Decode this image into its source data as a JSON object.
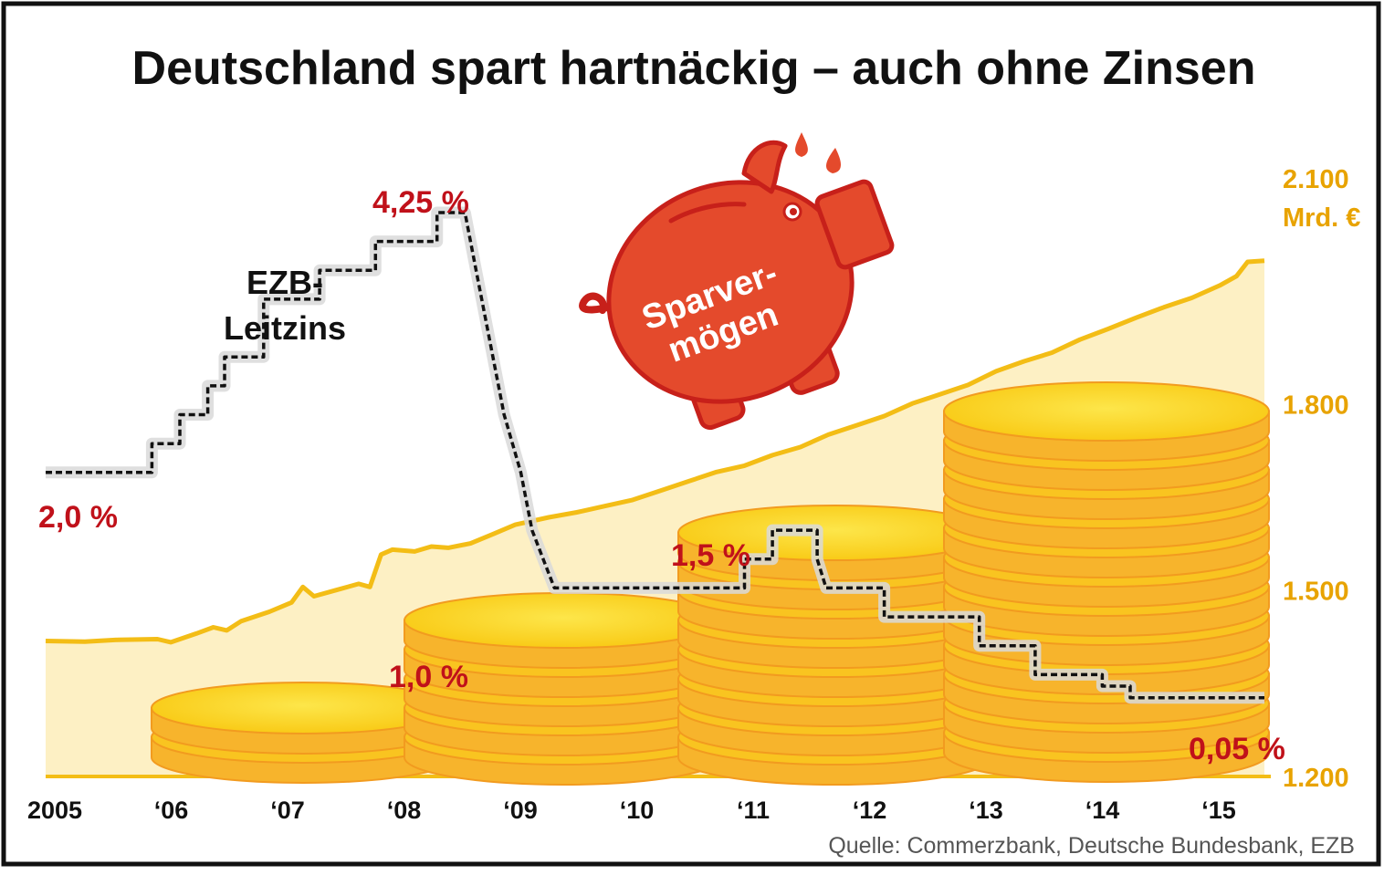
{
  "title": "Deutschland spart hartnäckig – auch ohne Zinsen",
  "source": "Quelle: Commerzbank, Deutsche Bundesbank, EZB",
  "colors": {
    "frame": "#111111",
    "area_fill": "#fdf0c4",
    "savings_line": "#f3bd16",
    "rate_line": "#111111",
    "rate_labels": "#c0111a",
    "axis_right_labels": "#e8a300",
    "piggy": "#e44a2c",
    "piggy_outline": "#c7201a",
    "coin_top": "#fbd616",
    "coin_side": "#f7b42c",
    "coin_edge": "#f29b1f"
  },
  "labels": {
    "ezb_line1": "EZB-",
    "ezb_line2": "Leitzins",
    "piggy_line1": "Sparver-",
    "piggy_line2": "mögen",
    "unit": "Mrd. €"
  },
  "chart_data": {
    "type": "line",
    "x_ticks": [
      "2005",
      "‘06",
      "‘07",
      "‘08",
      "‘09",
      "‘10",
      "‘11",
      "‘12",
      "‘13",
      "‘14",
      "‘15"
    ],
    "x_range": [
      2005.0,
      2015.9
    ],
    "y_right_ticks": [
      "1.200",
      "1.500",
      "1.800",
      "2.100"
    ],
    "y_right_range": [
      1200,
      2100
    ],
    "y_left_range": [
      0,
      4.25
    ],
    "series": [
      {
        "name": "Sparvermögen",
        "axis": "right",
        "unit": "Mrd. €",
        "points": [
          [
            2005.0,
            1418
          ],
          [
            2005.35,
            1417
          ],
          [
            2005.65,
            1420
          ],
          [
            2006.0,
            1421
          ],
          [
            2006.12,
            1416
          ],
          [
            2006.35,
            1430
          ],
          [
            2006.5,
            1440
          ],
          [
            2006.62,
            1435
          ],
          [
            2006.75,
            1450
          ],
          [
            2007.0,
            1465
          ],
          [
            2007.2,
            1480
          ],
          [
            2007.3,
            1505
          ],
          [
            2007.4,
            1490
          ],
          [
            2007.6,
            1500
          ],
          [
            2007.8,
            1510
          ],
          [
            2007.9,
            1505
          ],
          [
            2008.0,
            1557
          ],
          [
            2008.1,
            1565
          ],
          [
            2008.3,
            1562
          ],
          [
            2008.45,
            1570
          ],
          [
            2008.6,
            1568
          ],
          [
            2008.8,
            1575
          ],
          [
            2009.0,
            1590
          ],
          [
            2009.2,
            1605
          ],
          [
            2009.5,
            1617
          ],
          [
            2009.75,
            1625
          ],
          [
            2010.0,
            1635
          ],
          [
            2010.25,
            1645
          ],
          [
            2010.5,
            1660
          ],
          [
            2010.75,
            1675
          ],
          [
            2011.0,
            1690
          ],
          [
            2011.25,
            1700
          ],
          [
            2011.5,
            1717
          ],
          [
            2011.75,
            1730
          ],
          [
            2012.0,
            1750
          ],
          [
            2012.25,
            1765
          ],
          [
            2012.5,
            1780
          ],
          [
            2012.75,
            1800
          ],
          [
            2013.0,
            1815
          ],
          [
            2013.25,
            1830
          ],
          [
            2013.5,
            1852
          ],
          [
            2013.75,
            1868
          ],
          [
            2014.0,
            1882
          ],
          [
            2014.25,
            1903
          ],
          [
            2014.5,
            1920
          ],
          [
            2014.75,
            1938
          ],
          [
            2015.0,
            1955
          ],
          [
            2015.25,
            1970
          ],
          [
            2015.5,
            1990
          ],
          [
            2015.65,
            2005
          ],
          [
            2015.75,
            2028
          ],
          [
            2015.9,
            2030
          ]
        ]
      },
      {
        "name": "EZB-Leitzins",
        "axis": "left",
        "unit": "%",
        "points": [
          [
            2005.0,
            2.0
          ],
          [
            2005.95,
            2.0
          ],
          [
            2005.95,
            2.25
          ],
          [
            2006.2,
            2.25
          ],
          [
            2006.2,
            2.5
          ],
          [
            2006.45,
            2.5
          ],
          [
            2006.45,
            2.75
          ],
          [
            2006.6,
            2.75
          ],
          [
            2006.6,
            3.0
          ],
          [
            2006.95,
            3.0
          ],
          [
            2006.95,
            3.5
          ],
          [
            2007.45,
            3.5
          ],
          [
            2007.45,
            3.75
          ],
          [
            2007.95,
            3.75
          ],
          [
            2007.95,
            4.0
          ],
          [
            2008.5,
            4.0
          ],
          [
            2008.5,
            4.25
          ],
          [
            2008.75,
            4.25
          ],
          [
            2008.85,
            3.75
          ],
          [
            2008.95,
            3.25
          ],
          [
            2009.1,
            2.5
          ],
          [
            2009.25,
            2.0
          ],
          [
            2009.35,
            1.5
          ],
          [
            2009.45,
            1.25
          ],
          [
            2009.55,
            1.0
          ],
          [
            2011.25,
            1.0
          ],
          [
            2011.25,
            1.25
          ],
          [
            2011.5,
            1.25
          ],
          [
            2011.5,
            1.5
          ],
          [
            2011.9,
            1.5
          ],
          [
            2011.9,
            1.25
          ],
          [
            2011.98,
            1.0
          ],
          [
            2012.5,
            1.0
          ],
          [
            2012.5,
            0.75
          ],
          [
            2013.35,
            0.75
          ],
          [
            2013.35,
            0.5
          ],
          [
            2013.85,
            0.5
          ],
          [
            2013.85,
            0.25
          ],
          [
            2014.45,
            0.25
          ],
          [
            2014.45,
            0.15
          ],
          [
            2014.7,
            0.15
          ],
          [
            2014.7,
            0.05
          ],
          [
            2015.9,
            0.05
          ]
        ],
        "annotations": [
          "2,0 %",
          "4,25 %",
          "1,0 %",
          "1,5 %",
          "0,05 %"
        ]
      }
    ],
    "grid": false,
    "legend": "none"
  }
}
